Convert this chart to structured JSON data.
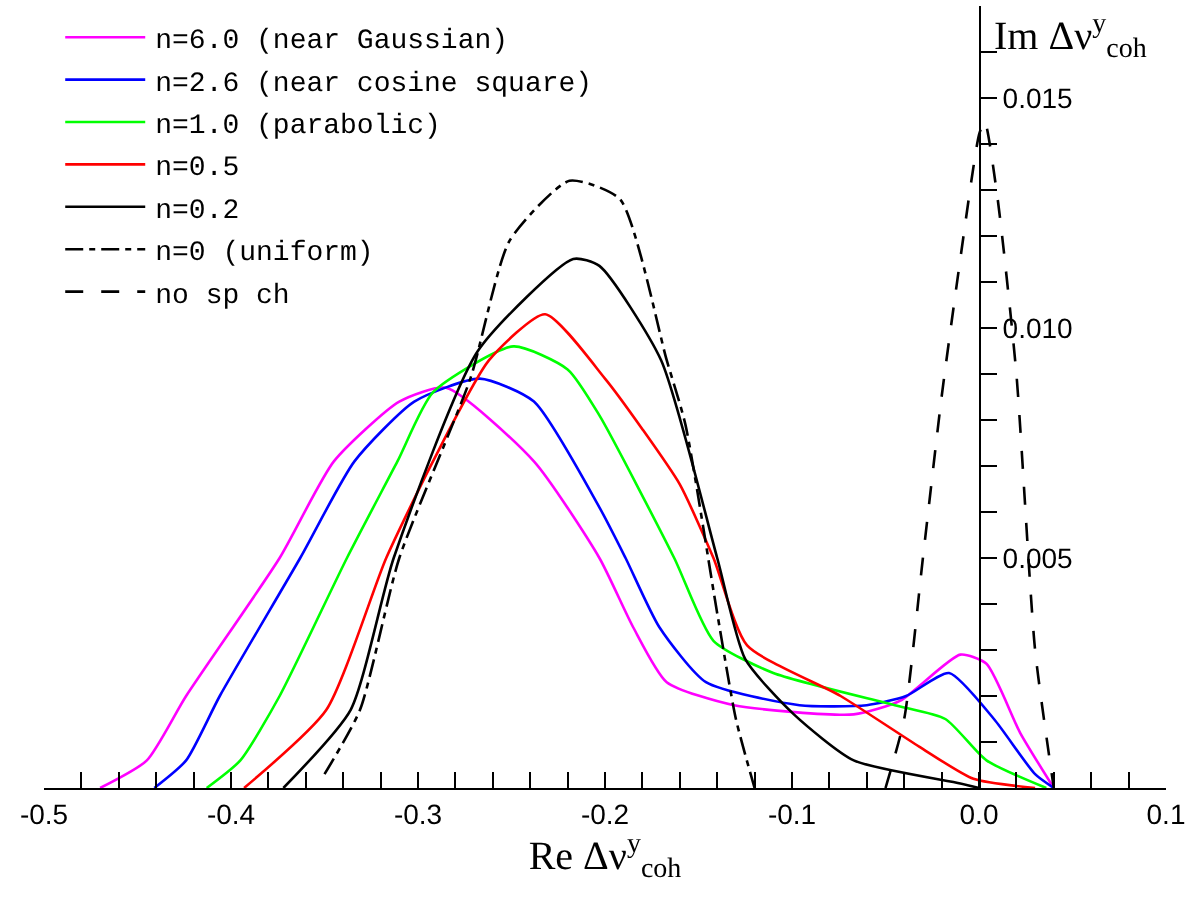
{
  "chart_data": {
    "type": "line",
    "xlabel": "Re Δν$^{y}$$_{coh}$",
    "ylabel": "Im Δν$^{y}$$_{coh}$",
    "xlim": [
      -0.5,
      0.1
    ],
    "ylim": [
      0,
      0.017
    ],
    "xticks": [
      -0.5,
      {
        "value": -0.48,
        "label": null
      },
      {
        "value": -0.46,
        "label": null
      },
      {
        "value": -0.44,
        "label": null
      },
      {
        "value": -0.42,
        "label": null
      },
      -0.4,
      {
        "value": -0.38,
        "label": null
      },
      {
        "value": -0.36,
        "label": null
      },
      {
        "value": -0.34,
        "label": null
      },
      {
        "value": -0.32,
        "label": null
      },
      -0.3,
      {
        "value": -0.28,
        "label": null
      },
      {
        "value": -0.26,
        "label": null
      },
      {
        "value": -0.24,
        "label": null
      },
      {
        "value": -0.22,
        "label": null
      },
      -0.2,
      {
        "value": -0.18,
        "label": null
      },
      {
        "value": -0.16,
        "label": null
      },
      {
        "value": -0.14,
        "label": null
      },
      {
        "value": -0.12,
        "label": null
      },
      -0.1,
      {
        "value": -0.08,
        "label": null
      },
      {
        "value": -0.06,
        "label": null
      },
      {
        "value": -0.04,
        "label": null
      },
      {
        "value": -0.02,
        "label": null
      },
      {
        "value": 0,
        "label": "0.0"
      },
      {
        "value": 0.02,
        "label": null
      },
      {
        "value": 0.04,
        "label": null
      },
      {
        "value": 0.06,
        "label": null
      },
      {
        "value": 0.08,
        "label": null
      },
      0.1
    ],
    "yticks": [
      {
        "value": 0.001,
        "label": null
      },
      {
        "value": 0.002,
        "label": null
      },
      {
        "value": 0.003,
        "label": null
      },
      {
        "value": 0.004,
        "label": null
      },
      0.005,
      {
        "value": 0.006,
        "label": null
      },
      {
        "value": 0.007,
        "label": null
      },
      {
        "value": 0.008,
        "label": null
      },
      {
        "value": 0.009,
        "label": null
      },
      {
        "value": 0.01,
        "label": "0.010"
      },
      {
        "value": 0.011,
        "label": null
      },
      {
        "value": 0.012,
        "label": null
      },
      {
        "value": 0.013,
        "label": null
      },
      {
        "value": 0.014,
        "label": null
      },
      0.015,
      {
        "value": 0.016,
        "label": null
      }
    ],
    "legend": "top left",
    "series": [
      {
        "name": "n=6.0 (near Gaussian)",
        "color": "#ff00ff",
        "line_style": "solid",
        "x": [
          -0.47,
          -0.445,
          -0.424,
          -0.374,
          -0.345,
          -0.31,
          -0.285,
          -0.238,
          -0.203,
          -0.185,
          -0.167,
          -0.131,
          -0.067,
          -0.042,
          -0.01,
          0.004,
          0.022,
          0.04
        ],
        "values": [
          0,
          0.0006,
          0.002,
          0.005,
          0.0071,
          0.0084,
          0.0087,
          0.0071,
          0.005,
          0.0035,
          0.0023,
          0.0018,
          0.0016,
          0.0019,
          0.0029,
          0.0027,
          0.0012,
          0
        ]
      },
      {
        "name": "n=2.6 (near cosine square)",
        "color": "#0000ff",
        "line_style": "solid",
        "x": [
          -0.441,
          -0.424,
          -0.406,
          -0.363,
          -0.334,
          -0.302,
          -0.267,
          -0.238,
          -0.203,
          -0.189,
          -0.171,
          -0.146,
          -0.096,
          -0.06,
          -0.039,
          -0.016,
          0.008,
          0.03,
          0.04
        ],
        "values": [
          0,
          0.0006,
          0.002,
          0.005,
          0.0071,
          0.0084,
          0.0089,
          0.0084,
          0.0061,
          0.005,
          0.0035,
          0.0023,
          0.0018,
          0.0018,
          0.002,
          0.0025,
          0.0015,
          0.0003,
          0
        ]
      },
      {
        "name": "n=1.0 (parabolic)",
        "color": "#00ff00",
        "line_style": "solid",
        "x": [
          -0.413,
          -0.395,
          -0.374,
          -0.338,
          -0.311,
          -0.292,
          -0.249,
          -0.22,
          -0.203,
          -0.163,
          -0.142,
          -0.11,
          -0.045,
          -0.018,
          0.004,
          0.036
        ],
        "values": [
          0,
          0.0006,
          0.002,
          0.005,
          0.0071,
          0.0086,
          0.0096,
          0.0091,
          0.0081,
          0.005,
          0.0032,
          0.0025,
          0.0018,
          0.0015,
          0.0006,
          0
        ]
      },
      {
        "name": "n=0.5",
        "color": "#ff0000",
        "line_style": "solid",
        "x": [
          -0.393,
          -0.349,
          -0.317,
          -0.292,
          -0.262,
          -0.232,
          -0.2,
          -0.18,
          -0.16,
          -0.142,
          -0.124,
          -0.074,
          -0.032,
          -0.003,
          0.03
        ],
        "values": [
          0,
          0.0017,
          0.005,
          0.0071,
          0.0093,
          0.0103,
          0.0089,
          0.0078,
          0.0066,
          0.005,
          0.0031,
          0.002,
          0.0009,
          0.0002,
          0
        ]
      },
      {
        "name": "n=0.2",
        "color": "#000000",
        "line_style": "solid",
        "x": [
          -0.372,
          -0.336,
          -0.313,
          -0.268,
          -0.217,
          -0.203,
          -0.17,
          -0.14,
          -0.125,
          -0.099,
          -0.067,
          -0.01,
          0.0
        ],
        "values": [
          0,
          0.0017,
          0.005,
          0.0095,
          0.0115,
          0.01135,
          0.0093,
          0.005,
          0.0028,
          0.0016,
          0.0006,
          0.0001,
          0
        ]
      },
      {
        "name": "n=0 (uniform)",
        "color": "#000000",
        "line_style": "dashdot",
        "x": [
          -0.35,
          -0.331,
          -0.31,
          -0.272,
          -0.251,
          -0.219,
          -0.192,
          -0.167,
          -0.157,
          -0.14,
          -0.13,
          -0.12
        ],
        "values": [
          0.0003,
          0.0017,
          0.005,
          0.0089,
          0.0119,
          0.0132,
          0.0128,
          0.0093,
          0.0079,
          0.0038,
          0.0015,
          0
        ]
      },
      {
        "name": "no sp ch",
        "color": "#000000",
        "line_style": "dashed",
        "x": [
          -0.05,
          -0.04,
          -0.03,
          -0.02,
          -0.01,
          0.0,
          0.003,
          0.01,
          0.02,
          0.03,
          0.04
        ],
        "values": [
          0,
          0.0015,
          0.005,
          0.0085,
          0.0115,
          0.0142,
          0.0145,
          0.0128,
          0.009,
          0.003,
          0
        ]
      }
    ]
  }
}
